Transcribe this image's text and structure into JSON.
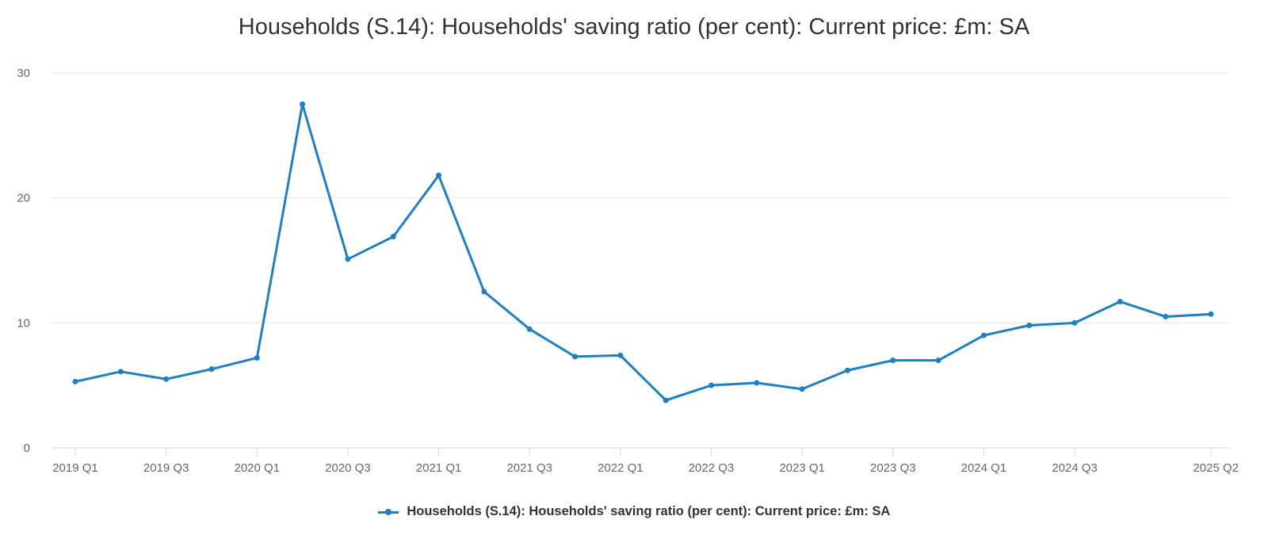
{
  "chart_data": {
    "type": "line",
    "title": "Households (S.14): Households' saving ratio (per cent): Current price: £m: SA",
    "xlabel": "",
    "ylabel": "",
    "ylim": [
      0,
      30
    ],
    "yticks": [
      0,
      10,
      20,
      30
    ],
    "x": [
      "2019 Q1",
      "2019 Q2",
      "2019 Q3",
      "2019 Q4",
      "2020 Q1",
      "2020 Q2",
      "2020 Q3",
      "2020 Q4",
      "2021 Q1",
      "2021 Q2",
      "2021 Q3",
      "2021 Q4",
      "2022 Q1",
      "2022 Q2",
      "2022 Q3",
      "2022 Q4",
      "2023 Q1",
      "2023 Q2",
      "2023 Q3",
      "2023 Q4",
      "2024 Q1",
      "2024 Q2",
      "2024 Q3",
      "2024 Q4",
      "2025 Q1",
      "2025 Q2"
    ],
    "xtick_labels": [
      "2019 Q1",
      "2019 Q3",
      "2020 Q1",
      "2020 Q3",
      "2021 Q1",
      "2021 Q3",
      "2022 Q1",
      "2022 Q3",
      "2023 Q1",
      "2023 Q3",
      "2024 Q1",
      "2024 Q3",
      "2025 Q2"
    ],
    "series": [
      {
        "name": "Households (S.14): Households' saving ratio (per cent): Current price: £m: SA",
        "color": "#1f7fc4",
        "values": [
          5.3,
          6.1,
          5.5,
          6.3,
          7.2,
          27.5,
          15.1,
          16.9,
          21.8,
          12.5,
          9.5,
          7.3,
          7.4,
          3.8,
          5.0,
          5.2,
          4.7,
          6.2,
          7.0,
          7.0,
          9.0,
          9.8,
          10.0,
          11.7,
          10.5,
          10.7
        ]
      }
    ],
    "grid": true,
    "legend": "bottom"
  }
}
